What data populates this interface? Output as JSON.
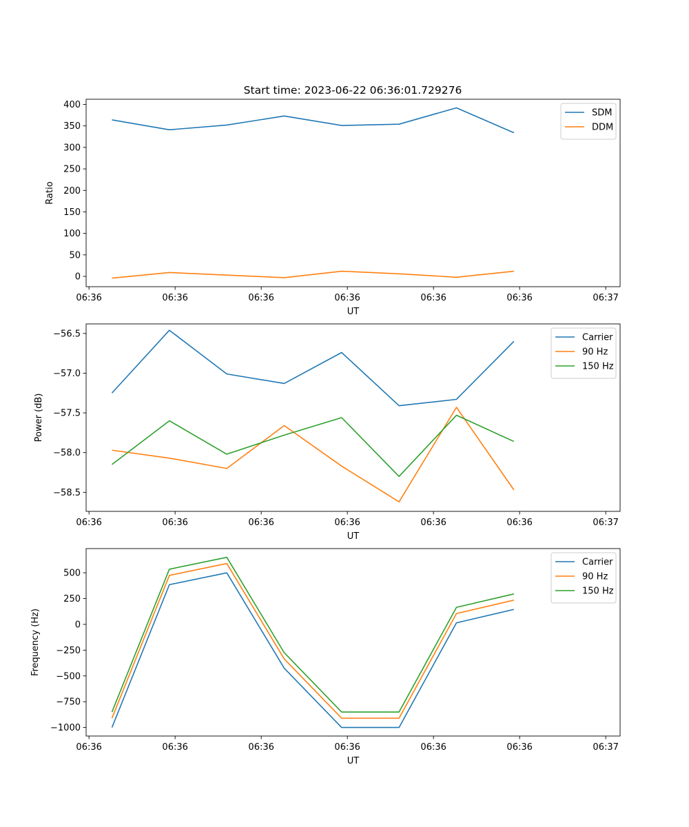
{
  "figure": {
    "title": "Start time: 2023-06-22 06:36:01.729276"
  },
  "chart_data": [
    {
      "type": "line",
      "xlabel": "UT",
      "ylabel": "Ratio",
      "x": [
        1,
        2,
        3,
        4,
        5,
        6,
        7,
        8
      ],
      "xlim": [
        0.55,
        9.85
      ],
      "xticks": [
        0.6,
        2.1,
        3.6,
        5.1,
        6.6,
        8.1,
        9.6
      ],
      "xticklabels": [
        "06:36",
        "06:36",
        "06:36",
        "06:36",
        "06:36",
        "06:36",
        "06:37"
      ],
      "ylim": [
        -24,
        412
      ],
      "yticks": [
        0,
        50,
        100,
        150,
        200,
        250,
        300,
        350,
        400
      ],
      "yticklabels": [
        "0",
        "50",
        "100",
        "150",
        "200",
        "250",
        "300",
        "350",
        "400"
      ],
      "grid": false,
      "legend_position": "top-right",
      "series": [
        {
          "name": "SDM",
          "color": "#1f77b4",
          "values": [
            364,
            341,
            352,
            373,
            351,
            354,
            392,
            334
          ]
        },
        {
          "name": "DDM",
          "color": "#ff7f0e",
          "values": [
            -4,
            9,
            3,
            -3,
            12,
            6,
            -2,
            12
          ]
        }
      ]
    },
    {
      "type": "line",
      "xlabel": "UT",
      "ylabel": "Power (dB)",
      "x": [
        1,
        2,
        3,
        4,
        5,
        6,
        7,
        8
      ],
      "xlim": [
        0.55,
        9.85
      ],
      "xticks": [
        0.6,
        2.1,
        3.6,
        5.1,
        6.6,
        8.1,
        9.6
      ],
      "xticklabels": [
        "06:36",
        "06:36",
        "06:36",
        "06:36",
        "06:36",
        "06:36",
        "06:37"
      ],
      "ylim": [
        -58.74,
        -56.38
      ],
      "yticks": [
        -58.5,
        -58.0,
        -57.5,
        -57.0,
        -56.5
      ],
      "yticklabels": [
        "−58.5",
        "−58.0",
        "−57.5",
        "−57.0",
        "−56.5"
      ],
      "grid": false,
      "legend_position": "top-right",
      "series": [
        {
          "name": "Carrier",
          "color": "#1f77b4",
          "values": [
            -57.25,
            -56.46,
            -57.01,
            -57.13,
            -56.74,
            -57.41,
            -57.33,
            -56.6
          ]
        },
        {
          "name": "90 Hz",
          "color": "#ff7f0e",
          "values": [
            -57.97,
            -58.07,
            -58.2,
            -57.66,
            -58.17,
            -58.62,
            -57.43,
            -58.47
          ]
        },
        {
          "name": "150 Hz",
          "color": "#2ca02c",
          "values": [
            -58.15,
            -57.6,
            -58.02,
            -57.78,
            -57.56,
            -58.3,
            -57.53,
            -57.86
          ]
        }
      ]
    },
    {
      "type": "line",
      "xlabel": "UT",
      "ylabel": "Frequency (Hz)",
      "x": [
        1,
        2,
        3,
        4,
        5,
        6,
        7,
        8
      ],
      "xlim": [
        0.55,
        9.85
      ],
      "xticks": [
        0.6,
        2.1,
        3.6,
        5.1,
        6.6,
        8.1,
        9.6
      ],
      "xticklabels": [
        "06:36",
        "06:36",
        "06:36",
        "06:36",
        "06:36",
        "06:36",
        "06:37"
      ],
      "ylim": [
        -1083,
        735
      ],
      "yticks": [
        -1000,
        -750,
        -500,
        -250,
        0,
        250,
        500
      ],
      "yticklabels": [
        "−1000",
        "−750",
        "−500",
        "−250",
        "0",
        "250",
        "500"
      ],
      "grid": false,
      "legend_position": "top-right",
      "series": [
        {
          "name": "Carrier",
          "color": "#1f77b4",
          "values": [
            -1000,
            385,
            500,
            -425,
            -1000,
            -1000,
            15,
            145
          ]
        },
        {
          "name": "90 Hz",
          "color": "#ff7f0e",
          "values": [
            -910,
            475,
            590,
            -335,
            -910,
            -910,
            105,
            235
          ]
        },
        {
          "name": "150 Hz",
          "color": "#2ca02c",
          "values": [
            -850,
            535,
            650,
            -275,
            -850,
            -850,
            165,
            295
          ]
        }
      ]
    }
  ]
}
